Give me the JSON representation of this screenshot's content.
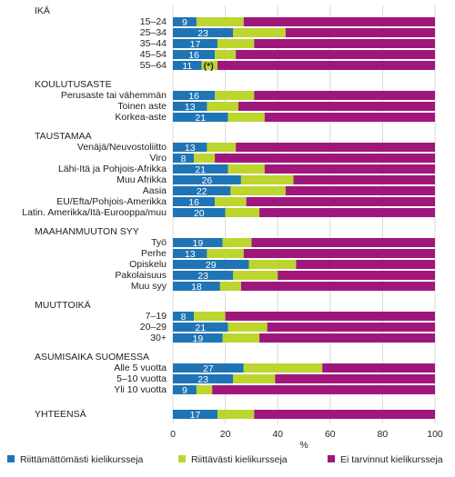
{
  "chart_data": {
    "type": "stacked-bar-horizontal",
    "series": [
      {
        "name": "Riittämättömästi kielikursseja",
        "color": "#1f74b5"
      },
      {
        "name": "Riittävästi kielikursseja",
        "color": "#bdd52f"
      },
      {
        "name": "Ei tarvinnut kielikursseja",
        "color": "#a0177c"
      }
    ],
    "groups": [
      {
        "title": "IKÄ",
        "categories": [
          "15–24",
          "25–34",
          "35–44",
          "45–54",
          "55–64"
        ],
        "values": [
          [
            9,
            18,
            73
          ],
          [
            23,
            20,
            57
          ],
          [
            17,
            14,
            69
          ],
          [
            16,
            8,
            76
          ],
          [
            11,
            6,
            83
          ]
        ]
      },
      {
        "title": "KOULUTUSASTE",
        "categories": [
          "Perusaste tai vähemmän",
          "Toinen aste",
          "Korkea-aste"
        ],
        "values": [
          [
            16,
            15,
            69
          ],
          [
            13,
            12,
            75
          ],
          [
            21,
            14,
            65
          ]
        ]
      },
      {
        "title": "TAUSTAMAA",
        "categories": [
          "Venäjä/Neuvostoliitto",
          "Viro",
          "Lähi-Itä ja Pohjois-Afrikka",
          "Muu Afrikka",
          "Aasia",
          "EU/Efta/Pohjois-Amerikka",
          "Latin. Amerikka/Itä-Eurooppa/muu"
        ],
        "values": [
          [
            13,
            11,
            76
          ],
          [
            8,
            8,
            84
          ],
          [
            21,
            14,
            65
          ],
          [
            26,
            20,
            54
          ],
          [
            22,
            21,
            57
          ],
          [
            16,
            12,
            72
          ],
          [
            20,
            13,
            67
          ]
        ]
      },
      {
        "title": "MAAHANMUUTON SYY",
        "categories": [
          "Työ",
          "Perhe",
          "Opiskelu",
          "Pakolaisuus",
          "Muu syy"
        ],
        "values": [
          [
            19,
            11,
            70
          ],
          [
            13,
            14,
            73
          ],
          [
            29,
            18,
            53
          ],
          [
            23,
            17,
            60
          ],
          [
            18,
            8,
            74
          ]
        ]
      },
      {
        "title": "MUUTTOIKÄ",
        "categories": [
          "7–19",
          "20–29",
          "30+"
        ],
        "values": [
          [
            8,
            12,
            80
          ],
          [
            21,
            15,
            64
          ],
          [
            19,
            14,
            67
          ]
        ]
      },
      {
        "title": "ASUMISAIKA SUOMESSA",
        "categories": [
          "Alle 5 vuotta",
          "5–10 vuotta",
          "Yli 10 vuotta"
        ],
        "values": [
          [
            27,
            30,
            43
          ],
          [
            23,
            16,
            61
          ],
          [
            9,
            6,
            85
          ]
        ]
      },
      {
        "title": "YHTEENSÄ",
        "categories": [
          null
        ],
        "values": [
          [
            17,
            14,
            69
          ]
        ]
      }
    ],
    "note_label": "(*)",
    "xlabel": "%",
    "xlim": [
      0,
      100
    ],
    "xticks": [
      0,
      20,
      40,
      60,
      80,
      100
    ],
    "grid": true
  }
}
